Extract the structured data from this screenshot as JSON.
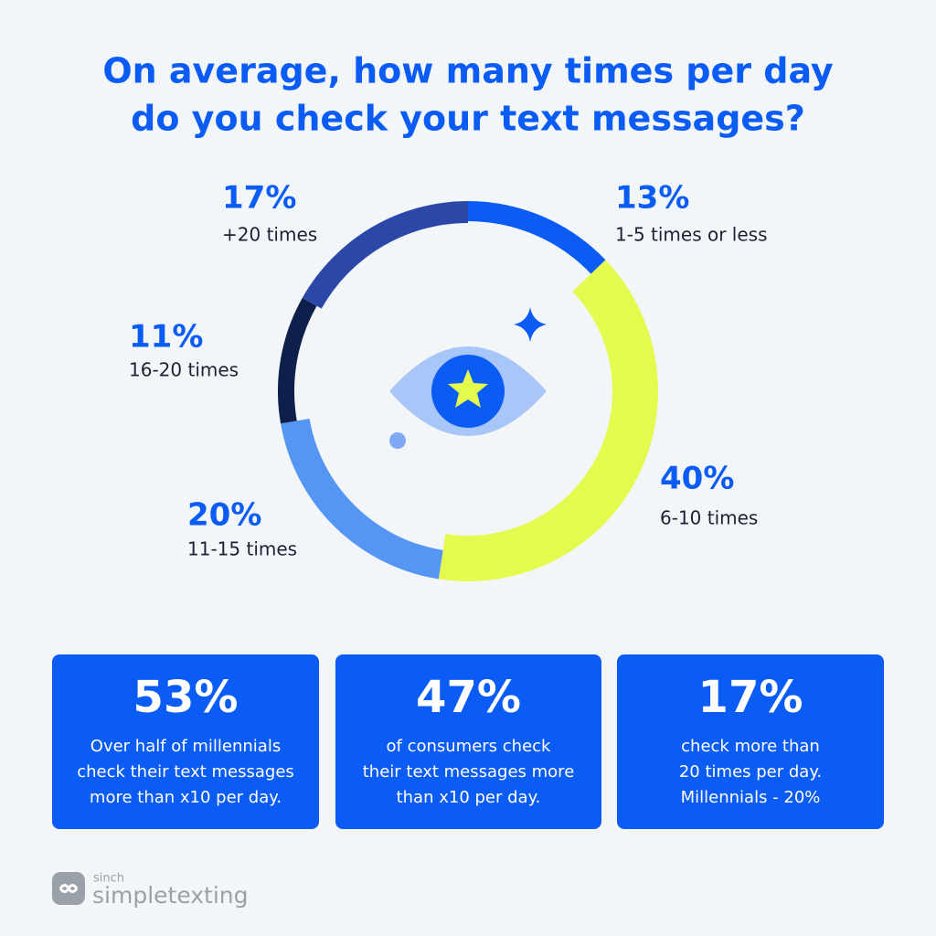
{
  "chart_data": {
    "type": "donut",
    "title": [
      "On average, how many times per day",
      "do you check your text messages?"
    ],
    "categories": [
      "1-5 times or less",
      "6-10 times",
      "11-15 times",
      "16-20 times",
      "+20 times"
    ],
    "values": [
      13,
      40,
      20,
      11,
      17
    ],
    "value_labels": [
      "13%",
      "40%",
      "20%",
      "11%",
      "17%"
    ],
    "colors": [
      "#0b5cf5",
      "#e4fa4f",
      "#5596f5",
      "#0d1f4a",
      "#2b47a8"
    ]
  },
  "cards": [
    {
      "stat": "53%",
      "lines": [
        "Over half of millennials",
        "check their text messages",
        "more than x10 per day."
      ]
    },
    {
      "stat": "47%",
      "lines": [
        "of consumers check",
        "their text messages more",
        "than x10  per day."
      ]
    },
    {
      "stat": "17%",
      "lines": [
        "check more than",
        "20 times per day.",
        "Millennials - 20%"
      ]
    }
  ],
  "footer": {
    "brand_small": "sinch",
    "brand": "simpletexting"
  }
}
